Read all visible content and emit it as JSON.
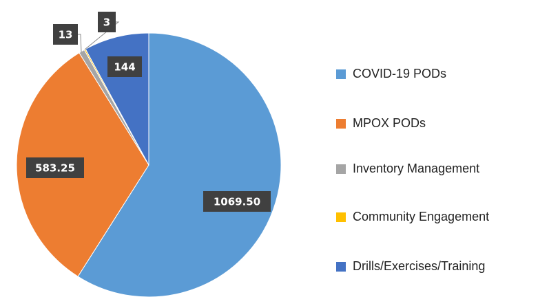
{
  "chart_data": {
    "type": "pie",
    "categories": [
      "COVID-19 PODs",
      "MPOX PODs",
      "Inventory Management",
      "Community Engagement",
      "Drills/Exercises/Training"
    ],
    "values": [
      1069.5,
      583.25,
      13,
      3,
      144
    ],
    "value_labels": [
      "1069.50",
      "583.25",
      "13",
      "3",
      "144"
    ],
    "colors": [
      "#5b9bd5",
      "#ed7d31",
      "#a5a5a5",
      "#ffc000",
      "#4472c4"
    ],
    "legend": "right"
  }
}
